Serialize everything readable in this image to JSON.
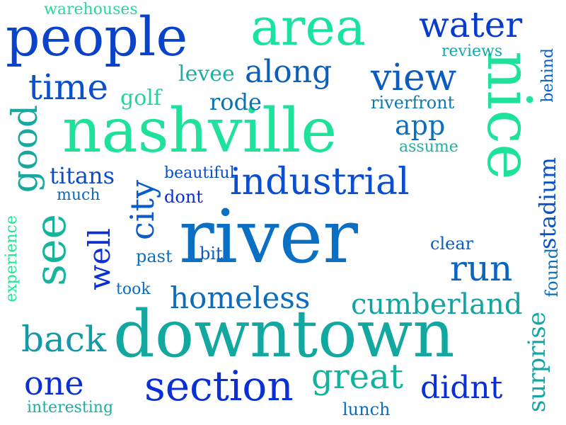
{
  "cloud": {
    "background": "#ffffff",
    "words": [
      {
        "text": "river",
        "color": "#0b6fc4"
      },
      {
        "text": "downtown",
        "color": "#12a89f"
      },
      {
        "text": "nashville",
        "color": "#1fe29a"
      },
      {
        "text": "nice",
        "color": "#1fe29a"
      },
      {
        "text": "people",
        "color": "#0a43c9"
      },
      {
        "text": "area",
        "color": "#19e3a0"
      },
      {
        "text": "section",
        "color": "#0a2fd6"
      },
      {
        "text": "industrial",
        "color": "#0b4fd0"
      },
      {
        "text": "see",
        "color": "#14b59b"
      },
      {
        "text": "water",
        "color": "#0a3ccc"
      },
      {
        "text": "view",
        "color": "#0c5bbf"
      },
      {
        "text": "good",
        "color": "#1aa7a0"
      },
      {
        "text": "time",
        "color": "#0a50c8"
      },
      {
        "text": "city",
        "color": "#0b5cc6"
      },
      {
        "text": "along",
        "color": "#0d5fb8"
      },
      {
        "text": "run",
        "color": "#0b64c0"
      },
      {
        "text": "homeless",
        "color": "#0d6cbc"
      },
      {
        "text": "cumberland",
        "color": "#14a4a2"
      },
      {
        "text": "back",
        "color": "#1599a6"
      },
      {
        "text": "one",
        "color": "#0a2fd6"
      },
      {
        "text": "great",
        "color": "#12b39e"
      },
      {
        "text": "didnt",
        "color": "#0a2fd6"
      },
      {
        "text": "well",
        "color": "#0a2fd6"
      },
      {
        "text": "titans",
        "color": "#0b4ccc"
      },
      {
        "text": "app",
        "color": "#0d6fbd"
      },
      {
        "text": "stadium",
        "color": "#0b52c6"
      },
      {
        "text": "surprise",
        "color": "#13a8a5"
      },
      {
        "text": "rode",
        "color": "#0c72b6"
      },
      {
        "text": "golf",
        "color": "#1dd89a"
      },
      {
        "text": "levee",
        "color": "#17b0a2"
      },
      {
        "text": "warehouses",
        "color": "#22dc96"
      },
      {
        "text": "reviews",
        "color": "#17a7a5"
      },
      {
        "text": "behind",
        "color": "#0c5cc2"
      },
      {
        "text": "riverfront",
        "color": "#0c78b4"
      },
      {
        "text": "assume",
        "color": "#1bb3a0"
      },
      {
        "text": "beautiful",
        "color": "#0b4ccc"
      },
      {
        "text": "much",
        "color": "#0c6ab9"
      },
      {
        "text": "dont",
        "color": "#0a2fd6"
      },
      {
        "text": "experience",
        "color": "#25e396"
      },
      {
        "text": "past",
        "color": "#0c6ebc"
      },
      {
        "text": "bit",
        "color": "#0c59c2"
      },
      {
        "text": "clear",
        "color": "#0c5ec0"
      },
      {
        "text": "took",
        "color": "#0c6cbb"
      },
      {
        "text": "found",
        "color": "#0c72b6"
      },
      {
        "text": "interesting",
        "color": "#16b1a4"
      },
      {
        "text": "lunch",
        "color": "#0e6dba"
      }
    ]
  }
}
